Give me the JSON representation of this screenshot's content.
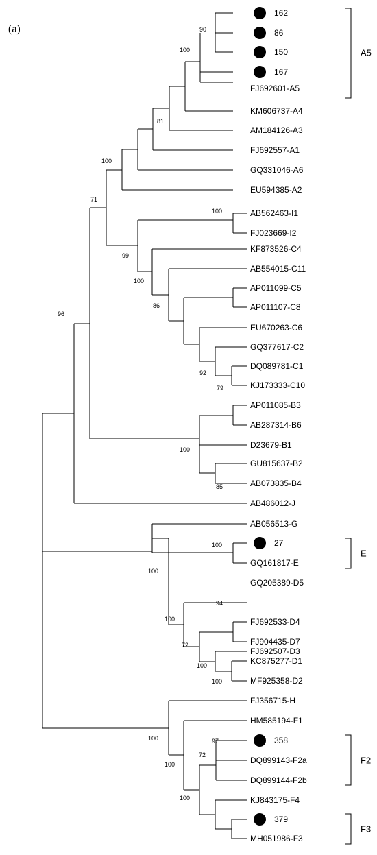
{
  "figure": {
    "panel_label": "(a)",
    "tree": [
      "162",
      "86",
      "150",
      "167",
      "FJ692601-A5",
      "KM606737-A4",
      "AM184126-A3",
      "FJ692557-A1",
      "GQ331046-A6",
      "EU594385-A2",
      "AB562463-I1",
      "FJ023669-I2",
      "KF873526-C4",
      "AB554015-C11",
      "AP011099-C5",
      "AP011107-C8",
      "EU670263-C6",
      "GQ377617-C2",
      "DQ089781-C1",
      "KJ173333-C10",
      "AP011085-B3",
      "AB287314-B6",
      "D23679-B1",
      "GU815637-B2",
      "AB073835-B4",
      "AB486012-J",
      "AB056513-G",
      "27",
      "GQ161817-E",
      "GQ205389-D5",
      "FJ692533-D4",
      "FJ904435-D7",
      "FJ692507-D3",
      "KC875277-D1",
      "MF925358-D2",
      "FJ356715-H",
      "HM585194-F1",
      "358",
      "DQ899143-F2a",
      "DQ899144-F2b",
      "KJ843175-F4",
      "379",
      "MH051986-F3"
    ],
    "marked_leaves": [
      "162",
      "86",
      "150",
      "167",
      "27",
      "358",
      "379"
    ],
    "bootstrap": [
      "90",
      "100",
      "81",
      "100",
      "71",
      "100",
      "99",
      "100",
      "86",
      "92",
      "79",
      "96",
      "100",
      "85",
      "100",
      "100",
      "94",
      "100",
      "72",
      "100",
      "100",
      "100",
      "97",
      "100",
      "72",
      "100"
    ],
    "clade_labels": [
      "A5",
      "E",
      "F2",
      "F3"
    ]
  }
}
